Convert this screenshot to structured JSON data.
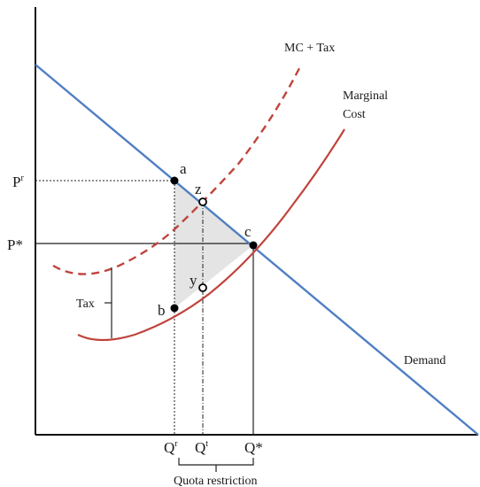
{
  "curves": {
    "demand": {
      "label": "Demand",
      "color": "#4f7fc4"
    },
    "marginal_cost": {
      "label_line1": "Marginal",
      "label_line2": "Cost",
      "color": "#c0443c"
    },
    "mc_plus_tax": {
      "label": "MC + Tax",
      "color": "#c0443c"
    }
  },
  "prices": {
    "p_r": {
      "base": "P",
      "sup": "r"
    },
    "p_star": "P*"
  },
  "quantities": {
    "q_r": {
      "base": "Q",
      "sup": "r"
    },
    "q_t": {
      "base": "Q",
      "sup": "t"
    },
    "q_star": "Q*"
  },
  "points": {
    "a": "a",
    "b": "b",
    "c": "c",
    "y": "y",
    "z": "z"
  },
  "tax_label": "Tax",
  "quota_label": "Quota restriction",
  "colors": {
    "deadweight_fill": "#e4e4e4",
    "axis": "#111111"
  }
}
